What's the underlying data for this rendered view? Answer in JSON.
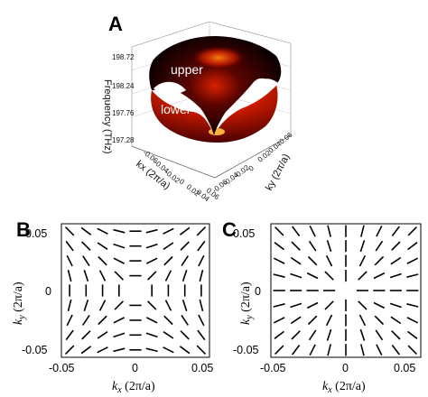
{
  "panels": {
    "A": {
      "letter": "A",
      "zlabel": "Frequency (THz)",
      "xlabel": "kx (2π/a)",
      "ylabel": "ky (2π/a)",
      "z_ticks": [
        "198.72",
        "198.24",
        "197.76",
        "197.28"
      ],
      "x_ticks": [
        "-0.06",
        "-0.04",
        "-0.02",
        "0",
        "0.02",
        "0.04",
        "0.06"
      ],
      "y_ticks": [
        "0.06",
        "0.04",
        "0.02",
        "0",
        "-0.02",
        "-0.04",
        "-0.06"
      ],
      "band_upper": "upper",
      "band_lower": "lower"
    },
    "B": {
      "letter": "B",
      "xlabel": {
        "k": "k",
        "sub": "x",
        "unit": " (2π/a)"
      },
      "ylabel": {
        "k": "k",
        "sub": "y",
        "unit": " (2π/a)"
      },
      "x_ticks": [
        "-0.05",
        "0",
        "0.05"
      ],
      "y_ticks": [
        "0.05",
        "0",
        "-0.05"
      ]
    },
    "C": {
      "letter": "C",
      "xlabel": {
        "k": "k",
        "sub": "x",
        "unit": " (2π/a)"
      },
      "ylabel": {
        "k": "k",
        "sub": "y",
        "unit": " (2π/a)"
      },
      "x_ticks": [
        "-0.05",
        "0",
        "0.05"
      ],
      "y_ticks": [
        "0.05",
        "0",
        "-0.05"
      ]
    }
  },
  "colors": {
    "surface_dark": "#140000",
    "surface_mid": "#b01000",
    "surface_hot": "#ff5a00",
    "line": "#000000"
  }
}
